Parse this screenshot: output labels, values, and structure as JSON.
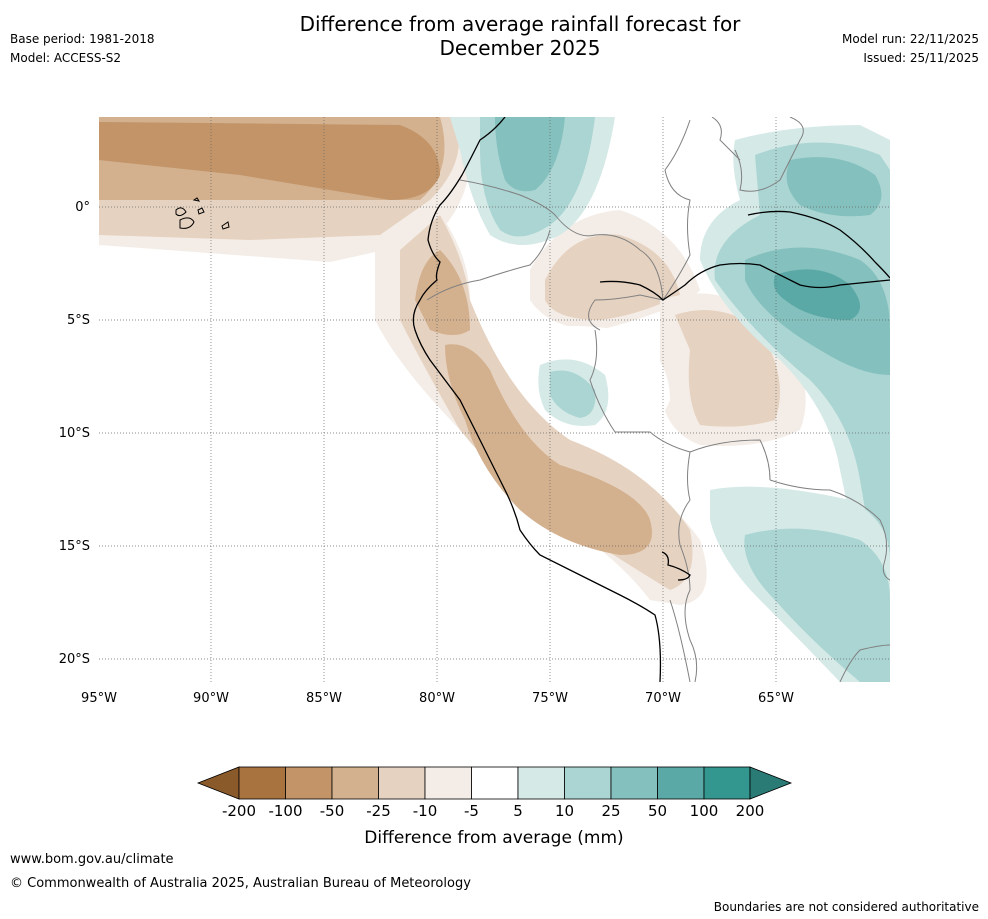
{
  "title": {
    "line1": "Difference from average rainfall forecast for",
    "line2": "December 2025"
  },
  "meta_left": {
    "base_period": "Base period: 1981-2018",
    "model": "Model: ACCESS-S2"
  },
  "meta_right": {
    "model_run": "Model run: 22/11/2025",
    "issued": "Issued: 25/11/2025"
  },
  "map": {
    "lon_labels": [
      "95°W",
      "90°W",
      "85°W",
      "80°W",
      "75°W",
      "70°W",
      "65°W"
    ],
    "lat_labels": [
      "0°",
      "5°S",
      "10°S",
      "15°S",
      "20°S"
    ]
  },
  "legend": {
    "ticks": [
      "-200",
      "-100",
      "-50",
      "-25",
      "-10",
      "-5",
      "5",
      "10",
      "25",
      "50",
      "100",
      "200"
    ],
    "colors": [
      "#8a5a2b",
      "#a8733f",
      "#c29468",
      "#d3b08e",
      "#e6d2c0",
      "#f4ede7",
      "#ffffff",
      "#d5e9e7",
      "#aad5d3",
      "#84c0bd",
      "#5aa9a6",
      "#33968f",
      "#2a7a75"
    ],
    "label": "Difference from average (mm)"
  },
  "footer": {
    "url": "www.bom.gov.au/climate",
    "copyright": "© Commonwealth of Australia 2025, Australian Bureau of Meteorology",
    "disclaimer": "Boundaries are not considered authoritative"
  }
}
